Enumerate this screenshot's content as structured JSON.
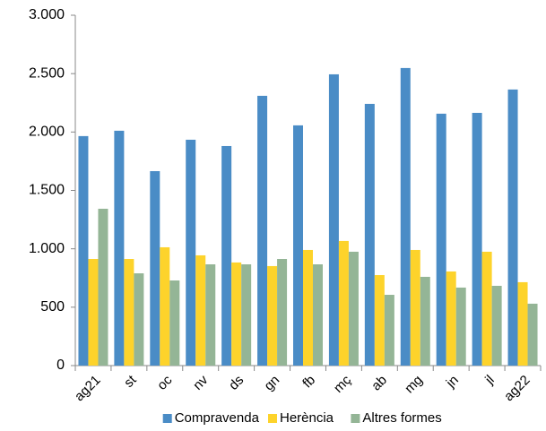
{
  "chart_data": {
    "type": "bar",
    "categories": [
      "ag21",
      "st",
      "oc",
      "nv",
      "ds",
      "gn",
      "fb",
      "mç",
      "ab",
      "mg",
      "jn",
      "jl",
      "ag22"
    ],
    "series": [
      {
        "name": "Compravenda",
        "color": "#4a8cc6",
        "values": [
          1965,
          2011,
          1665,
          1934,
          1880,
          2310,
          2057,
          2494,
          2241,
          2548,
          2157,
          2164,
          2364
        ]
      },
      {
        "name": "Herència",
        "color": "#fdd32b",
        "values": [
          913,
          913,
          1013,
          944,
          883,
          852,
          990,
          1067,
          775,
          990,
          806,
          975,
          714
        ]
      },
      {
        "name": "Altres formes",
        "color": "#94b596",
        "values": [
          1343,
          790,
          729,
          867,
          867,
          913,
          867,
          975,
          606,
          760,
          668,
          683,
          530
        ]
      }
    ],
    "ylim": [
      0,
      3000
    ],
    "yticks": [
      0,
      500,
      {
        "value": 1000,
        "label": "1.000"
      },
      {
        "value": 1500,
        "label": "1.500"
      },
      {
        "value": 2000,
        "label": "2.000"
      },
      {
        "value": 2500,
        "label": "2.500"
      },
      {
        "value": 3000,
        "label": "3.000"
      }
    ],
    "grid": false,
    "legend": "bottom"
  }
}
